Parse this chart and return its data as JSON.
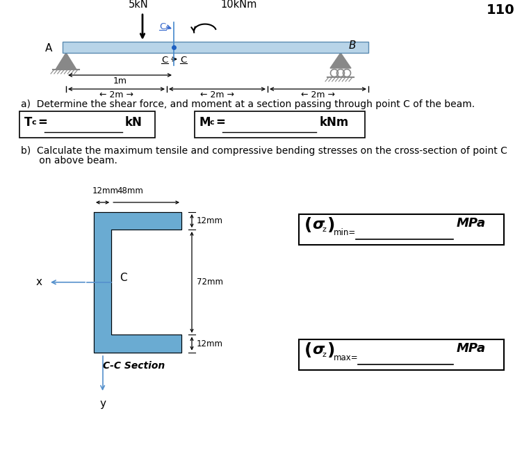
{
  "bg_color": "#ffffff",
  "beam_color": "#b8d4e8",
  "cross_section_color": "#6aabd2",
  "load_5kN_label": "5kN",
  "load_10kNm_label": "10kNm",
  "label_A": "A",
  "label_B": "B",
  "label_C": "C",
  "dim_1m": "1m",
  "part_a_text": "a)  Determine the shear force, and moment at a section passing through point C of the beam.",
  "part_b_text1": "b)  Calculate the maximum tensile and compressive bending stresses on the cross-section of point C",
  "part_b_text2": "      on above beam.",
  "dim_12mm": "12mm",
  "dim_48mm": "48mm",
  "dim_72mm": "72mm",
  "label_cc": "C-C Section",
  "sigma_unit": "MPa",
  "title_number": "110"
}
